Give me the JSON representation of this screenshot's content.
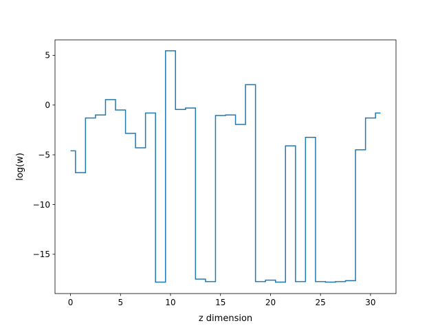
{
  "chart_data": {
    "type": "line",
    "drawstyle": "steps-mid",
    "xlabel": "z dimension",
    "ylabel": "log(w)",
    "xlim": [
      -1.55,
      32.55
    ],
    "ylim": [
      -18.95,
      6.55
    ],
    "xticks": [
      0,
      5,
      10,
      15,
      20,
      25,
      30
    ],
    "xtick_labels": [
      "0",
      "5",
      "10",
      "15",
      "20",
      "25",
      "30"
    ],
    "yticks": [
      5,
      0,
      -5,
      -10,
      -15
    ],
    "ytick_labels": [
      "5",
      "0",
      "−5",
      "−10",
      "−15"
    ],
    "grid": false,
    "series": [
      {
        "color": "#1f77b4",
        "x": [
          0,
          1,
          2,
          3,
          4,
          5,
          6,
          7,
          8,
          9,
          10,
          11,
          12,
          13,
          14,
          15,
          16,
          17,
          18,
          19,
          20,
          21,
          22,
          23,
          24,
          25,
          26,
          27,
          28,
          29,
          30,
          31
        ],
        "y": [
          -4.6,
          -6.8,
          -1.3,
          -1.0,
          0.55,
          -0.5,
          -2.85,
          -4.3,
          -0.8,
          -17.8,
          5.45,
          -0.45,
          -0.3,
          -17.5,
          -17.75,
          -1.05,
          -1.0,
          -1.95,
          2.05,
          -17.75,
          -17.6,
          -17.8,
          -4.1,
          -17.75,
          -3.25,
          -17.75,
          -17.8,
          -17.75,
          -17.65,
          -4.5,
          -1.3,
          -0.8
        ]
      }
    ]
  }
}
